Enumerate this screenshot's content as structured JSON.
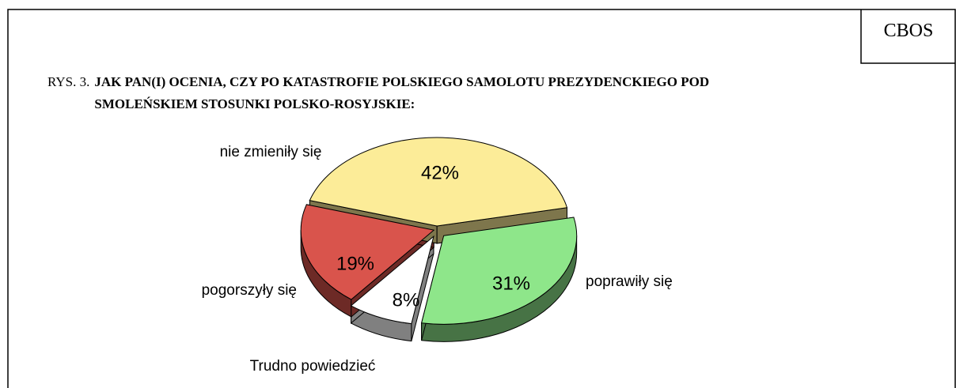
{
  "source": "CBOS",
  "chart_data": {
    "type": "pie",
    "figure_label": "RYS. 3.",
    "title": "JAK PAN(I) OCENIA, CZY PO KATASTROFIE POLSKIEGO SAMOLOTU PREZYDENCKIEGO POD SMOLEŃSKIEM STOSUNKI POLSKO-ROSYJSKIE:",
    "categories": [
      "poprawiły się",
      "Trudno powiedzieć",
      "pogorszyły się",
      "nie zmieniły się"
    ],
    "values": [
      31,
      8,
      19,
      42
    ],
    "value_labels": [
      "31%",
      "8%",
      "19%",
      "42%"
    ],
    "colors": [
      "#8ee68a",
      "#ffffff",
      "#d9544c",
      "#fcec98"
    ]
  }
}
